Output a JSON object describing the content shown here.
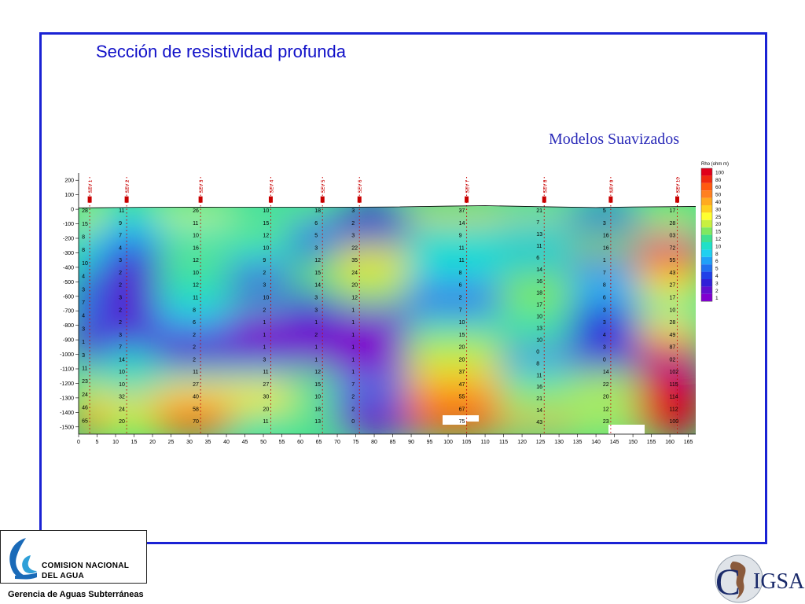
{
  "slide": {
    "title": "Sección de resistividad profunda",
    "subtitle": "Modelos Suavizados"
  },
  "org": {
    "name_line1": "COMISION NACIONAL",
    "name_line2": "DEL  AGUA",
    "subunit": "Gerencia de Aguas Subterráneas",
    "right_logo_text": "IGSA",
    "right_logo_initial": "C"
  },
  "colors": {
    "frame": "#1a22d4",
    "title": "#1010c8"
  },
  "chart_data": {
    "type": "heatmap",
    "xlabel": "",
    "ylabel": "",
    "x_ticks": [
      "0",
      "5",
      "10",
      "15",
      "20",
      "25",
      "30",
      "35",
      "40",
      "45",
      "50",
      "55",
      "60",
      "65",
      "70",
      "75",
      "80",
      "85",
      "90",
      "95",
      "100",
      "105",
      "110",
      "115",
      "120",
      "125",
      "130",
      "135",
      "140",
      "145",
      "150",
      "155",
      "160",
      "165"
    ],
    "y_ticks": [
      "200",
      "100",
      "0",
      "-100",
      "-200",
      "-300",
      "-400",
      "-500",
      "-600",
      "-700",
      "-800",
      "-900",
      "-1000",
      "-1100",
      "-1200",
      "-1300",
      "-1400",
      "-1500"
    ],
    "xlim": [
      0,
      167
    ],
    "ylim": [
      -1550,
      250
    ],
    "grid": false,
    "legend": {
      "title": "Rho (ohm m)",
      "placement": "right",
      "levels": [
        "100",
        "80",
        "60",
        "50",
        "40",
        "30",
        "25",
        "20",
        "15",
        "12",
        "10",
        "8",
        "6",
        "5",
        "4",
        "3",
        "2",
        "1"
      ],
      "colors": [
        "#e0001a",
        "#f02a10",
        "#ff5a10",
        "#ff8020",
        "#ffaa20",
        "#ffd020",
        "#ffff30",
        "#c8f040",
        "#80e860",
        "#40e090",
        "#20e0c8",
        "#20d0f0",
        "#20a0f8",
        "#2070f0",
        "#2040e8",
        "#3020d8",
        "#6010d0",
        "#8000d0"
      ]
    },
    "surface": [
      [
        0,
        10
      ],
      [
        10,
        12
      ],
      [
        25,
        15
      ],
      [
        40,
        14
      ],
      [
        55,
        14
      ],
      [
        70,
        14
      ],
      [
        85,
        16
      ],
      [
        100,
        22
      ],
      [
        110,
        25
      ],
      [
        125,
        18
      ],
      [
        140,
        12
      ],
      [
        150,
        16
      ],
      [
        160,
        18
      ],
      [
        167,
        20
      ]
    ],
    "soundings": [
      {
        "x": 3,
        "label": "SEV 1",
        "values": [
          "28",
          "15",
          "8",
          "8",
          "10",
          "4",
          "3",
          "7",
          "4",
          "3",
          "1",
          "3",
          "11",
          "23",
          "24",
          "46",
          "65"
        ]
      },
      {
        "x": 13,
        "label": "SEV 2",
        "values": [
          "11",
          "9",
          "7",
          "4",
          "3",
          "2",
          "2",
          "3",
          "2",
          "2",
          "3",
          "7",
          "14",
          "10",
          "10",
          "32",
          "24",
          "20"
        ]
      },
      {
        "x": 33,
        "label": "SEV 3",
        "values": [
          "26",
          "11",
          "10",
          "16",
          "12",
          "10",
          "12",
          "11",
          "8",
          "6",
          "2",
          "2",
          "2",
          "11",
          "27",
          "40",
          "58",
          "70"
        ]
      },
      {
        "x": 52,
        "label": "SEV 4",
        "values": [
          "10",
          "15",
          "12",
          "10",
          "9",
          "2",
          "3",
          "10",
          "2",
          "1",
          "1",
          "1",
          "3",
          "11",
          "27",
          "30",
          "20",
          "11"
        ]
      },
      {
        "x": 66,
        "label": "SEV 5",
        "values": [
          "18",
          "6",
          "5",
          "3",
          "12",
          "15",
          "14",
          "3",
          "3",
          "1",
          "2",
          "1",
          "1",
          "12",
          "15",
          "10",
          "18",
          "13"
        ]
      },
      {
        "x": 76,
        "label": "SEV 6",
        "values": [
          "3",
          "2",
          "3",
          "22",
          "35",
          "24",
          "20",
          "12",
          "1",
          "1",
          "1",
          "1",
          "1",
          "1",
          "7",
          "2",
          "2",
          "0"
        ]
      },
      {
        "x": 105,
        "label": "SEV 7",
        "values": [
          "37",
          "14",
          "9",
          "11",
          "11",
          "8",
          "6",
          "2",
          "7",
          "10",
          "15",
          "20",
          "20",
          "37",
          "47",
          "55",
          "67",
          "75"
        ]
      },
      {
        "x": 126,
        "label": "SEV 8",
        "values": [
          "21",
          "7",
          "13",
          "11",
          "6",
          "14",
          "16",
          "18",
          "17",
          "10",
          "13",
          "10",
          "0",
          "8",
          "11",
          "16",
          "21",
          "14",
          "43"
        ]
      },
      {
        "x": 144,
        "label": "SEV 9",
        "values": [
          "5",
          "3",
          "16",
          "16",
          "1",
          "7",
          "8",
          "6",
          "3",
          "3",
          "4",
          "3",
          "0",
          "14",
          "22",
          "20",
          "12",
          "23"
        ]
      },
      {
        "x": 162,
        "label": "SEV 10",
        "values": [
          "17",
          "28",
          "03",
          "72",
          "55",
          "43",
          "27",
          "17",
          "10",
          "28",
          "49",
          "87",
          "02",
          "102",
          "115",
          "114",
          "112",
          "100"
        ]
      }
    ]
  }
}
